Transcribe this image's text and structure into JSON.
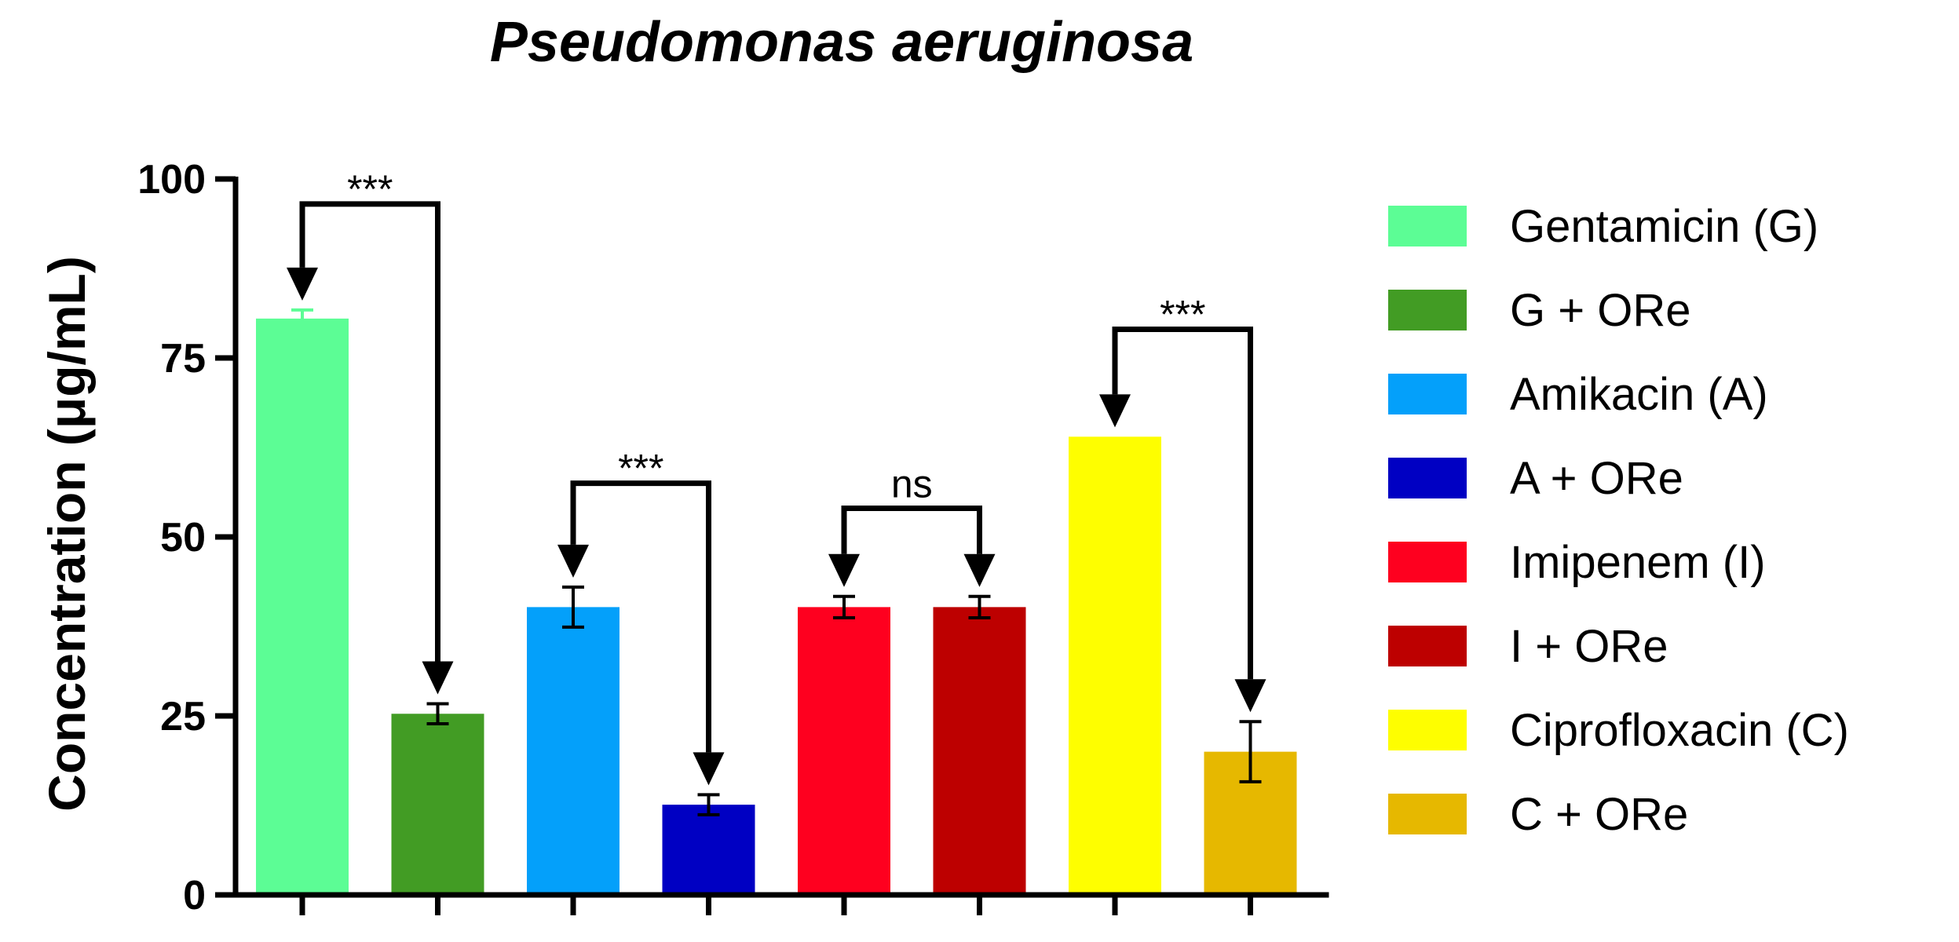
{
  "chart_data": {
    "type": "bar",
    "title": "Pseudomonas aeruginosa",
    "xlabel": "",
    "ylabel": "Concentration (μg/mL)",
    "ylim": [
      0,
      100
    ],
    "yticks": [
      0,
      25,
      50,
      75,
      100
    ],
    "legend_position": "right",
    "categories": [
      "Gentamicin (G)",
      "G + ORe",
      "Amikacin (A)",
      "A + ORe",
      "Imipenem (I)",
      "I + ORe",
      "Ciprofloxacin (C)",
      "C + ORe"
    ],
    "values": [
      80.5,
      25.3,
      40.2,
      12.6,
      40.2,
      40.2,
      64,
      20
    ],
    "errors": [
      1.2,
      1.4,
      2.8,
      1.4,
      1.5,
      1.5,
      0,
      4.2
    ],
    "colors": [
      "#5cfd95",
      "#429c24",
      "#04a0fa",
      "#0000c3",
      "#fe001f",
      "#bd0000",
      "#fefe00",
      "#e6b800"
    ],
    "comparisons": [
      {
        "from": 0,
        "to": 1,
        "label": "***",
        "level": 96.5
      },
      {
        "from": 2,
        "to": 3,
        "label": "***",
        "level": 57.5
      },
      {
        "from": 4,
        "to": 5,
        "label": "ns",
        "level": 54
      },
      {
        "from": 6,
        "to": 7,
        "label": "***",
        "level": 79
      }
    ]
  }
}
